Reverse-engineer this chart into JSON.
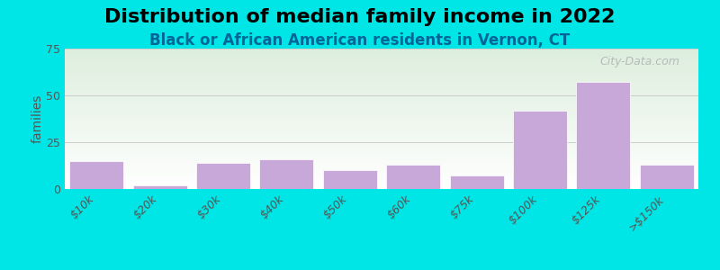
{
  "title": "Distribution of median family income in 2022",
  "subtitle": "Black or African American residents in Vernon, CT",
  "categories": [
    "$10k",
    "$20k",
    "$30k",
    "$40k",
    "$50k",
    "$60k",
    "$75k",
    "$100k",
    "$125k",
    ">$150k"
  ],
  "values": [
    15,
    2,
    14,
    16,
    10,
    13,
    7,
    42,
    57,
    13
  ],
  "bar_color": "#c8a8d8",
  "ylabel": "families",
  "ylim": [
    0,
    75
  ],
  "yticks": [
    0,
    25,
    50,
    75
  ],
  "background_outer": "#00e5e5",
  "background_inner_top": "#ddeedd",
  "background_inner_bottom": "#ffffff",
  "title_fontsize": 16,
  "subtitle_fontsize": 12,
  "subtitle_color": "#006699",
  "watermark": "City-Data.com"
}
